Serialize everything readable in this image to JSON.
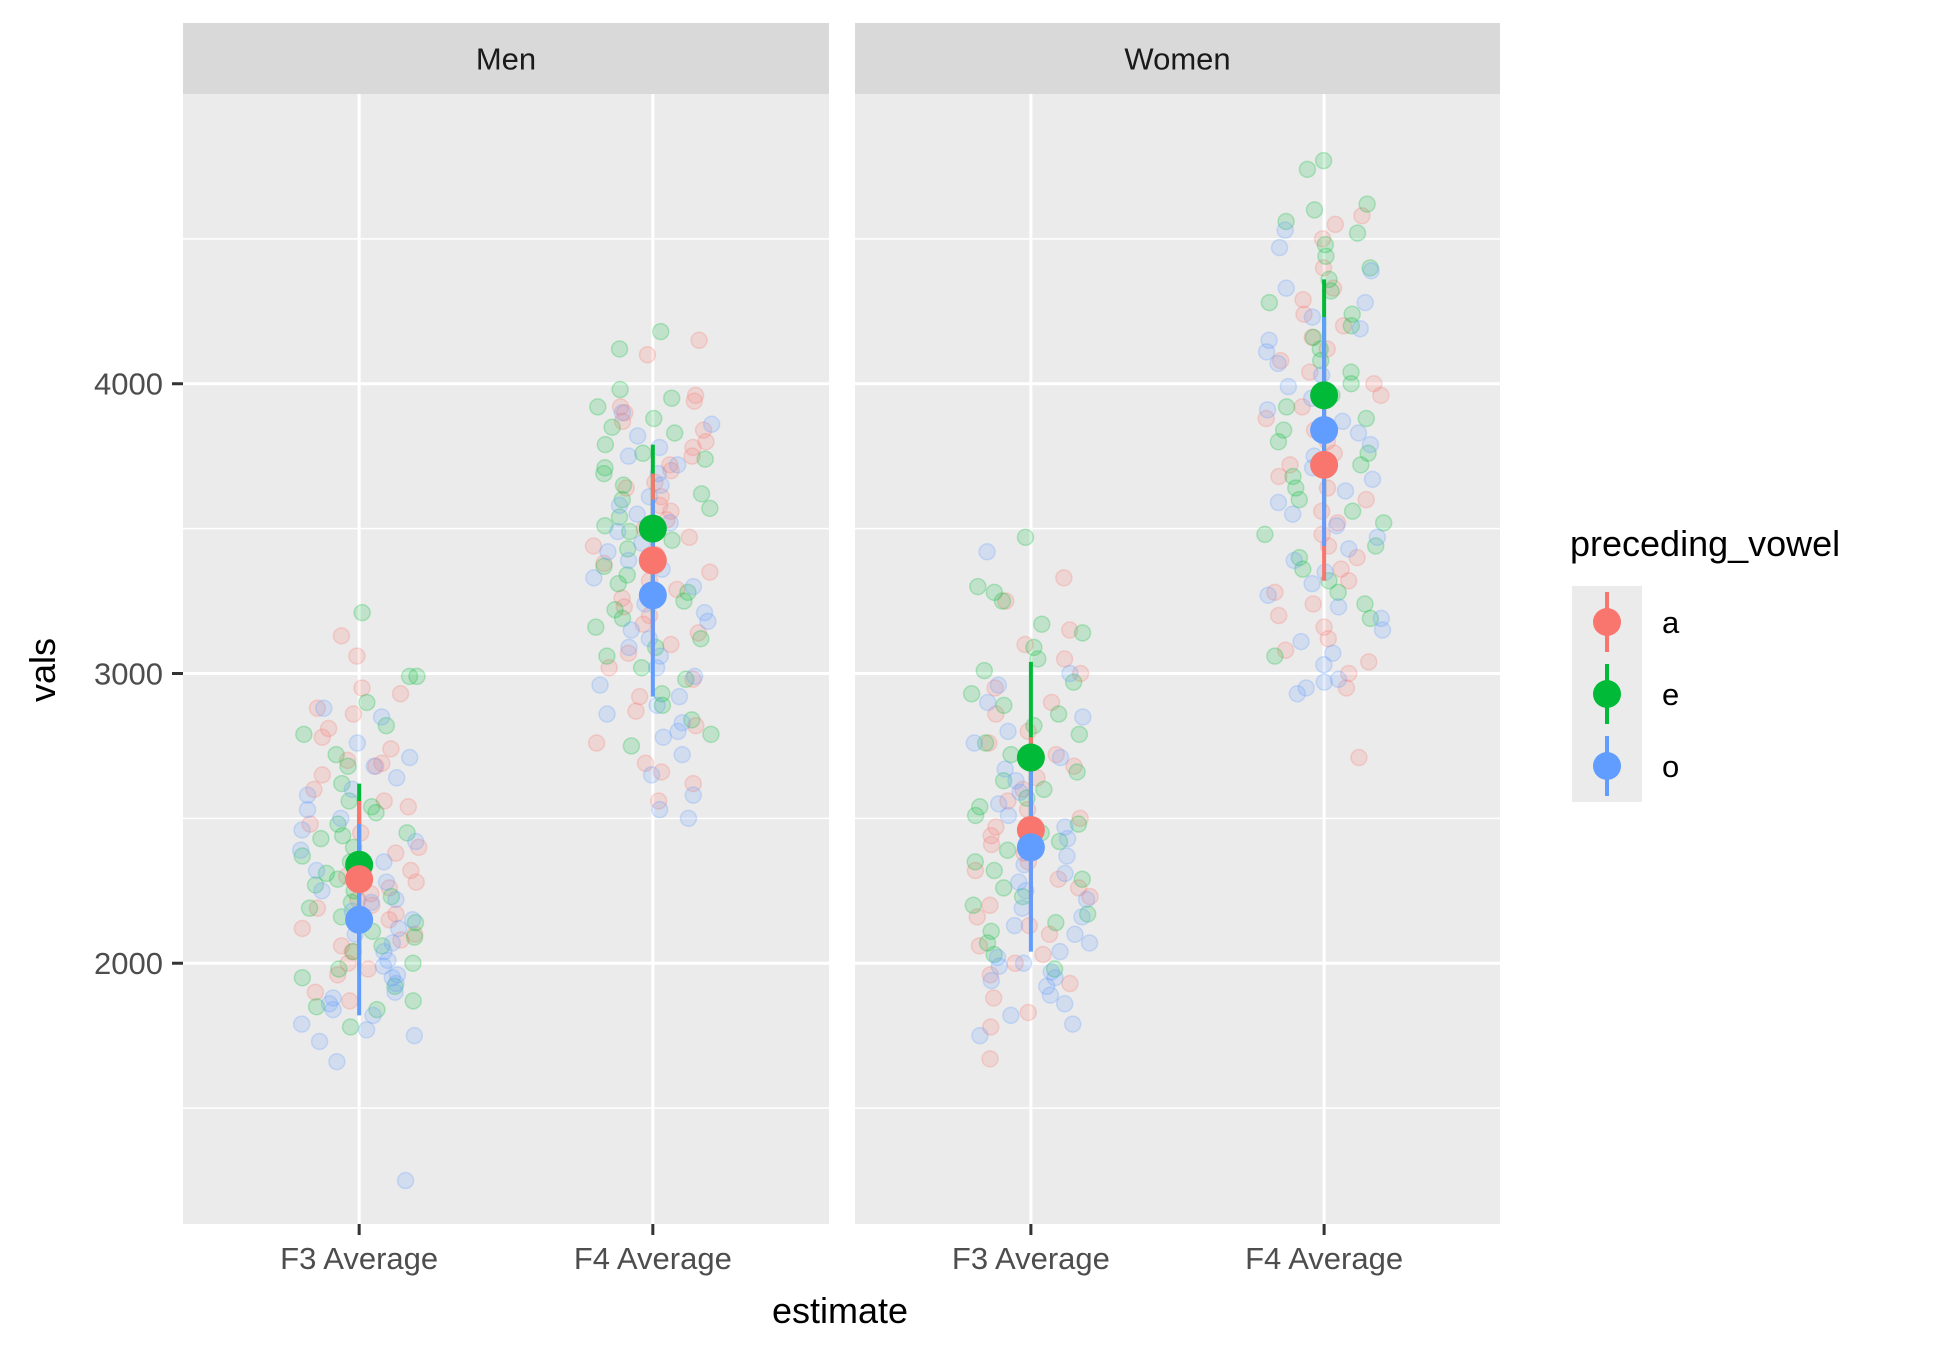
{
  "chart_data": {
    "type": "scatter",
    "xlabel": "estimate",
    "ylabel": "vals",
    "categories": [
      "F3 Average",
      "F4 Average"
    ],
    "ylim": [
      1100,
      5000
    ],
    "yticks": [
      2000,
      3000,
      4000
    ],
    "grid": true,
    "legend": {
      "title": "preceding_vowel",
      "position": "right",
      "items": [
        {
          "label": "a",
          "color": "#F8766D"
        },
        {
          "label": "e",
          "color": "#00BA38"
        },
        {
          "label": "o",
          "color": "#619CFF"
        }
      ]
    },
    "panels": [
      {
        "title": "Men",
        "summary": [
          {
            "category": "F3 Average",
            "vowel": "e",
            "mean": 2340,
            "low": 2050,
            "high": 2620
          },
          {
            "category": "F3 Average",
            "vowel": "a",
            "mean": 2290,
            "low": 1980,
            "high": 2560
          },
          {
            "category": "F3 Average",
            "vowel": "o",
            "mean": 2150,
            "low": 1820,
            "high": 2480
          },
          {
            "category": "F4 Average",
            "vowel": "e",
            "mean": 3500,
            "low": 3200,
            "high": 3790
          },
          {
            "category": "F4 Average",
            "vowel": "a",
            "mean": 3390,
            "low": 3060,
            "high": 3690
          },
          {
            "category": "F4 Average",
            "vowel": "o",
            "mean": 3270,
            "low": 2920,
            "high": 3600
          }
        ],
        "points": [
          {
            "category": "F3 Average",
            "vowel": "a",
            "values": [
              2930,
              2880,
              2780,
              2690,
              2680,
              2650,
              2600,
              2560,
              2540,
              2480,
              2450,
              2400,
              2380,
              2350,
              2320,
              2300,
              2280,
              2260,
              2240,
              2220,
              2200,
              2190,
              2170,
              2150,
              2120,
              2100,
              2080,
              2060,
              2040,
              2000,
              1980,
              1960,
              1900,
              1870,
              3130,
              3060,
              2950,
              2860,
              2810,
              2740,
              2700
            ]
          },
          {
            "category": "F3 Average",
            "vowel": "e",
            "values": [
              3210,
              2990,
              2900,
              2820,
              2790,
              2720,
              2680,
              2620,
              2560,
              2540,
              2520,
              2480,
              2450,
              2430,
              2400,
              2370,
              2340,
              2310,
              2290,
              2270,
              2250,
              2230,
              2210,
              2190,
              2160,
              2140,
              2110,
              2090,
              2060,
              2040,
              2000,
              1980,
              1950,
              1920,
              1870,
              1850,
              1840,
              1780,
              2990,
              2440,
              2350
            ]
          },
          {
            "category": "F3 Average",
            "vowel": "o",
            "values": [
              2880,
              2850,
              2760,
              2710,
              2680,
              2640,
              2580,
              2530,
              2500,
              2460,
              2420,
              2390,
              2350,
              2320,
              2280,
              2250,
              2220,
              2180,
              2150,
              2120,
              2100,
              2070,
              2040,
              2010,
              1990,
              1960,
              1950,
              1930,
              1900,
              1880,
              1860,
              1840,
              1820,
              1790,
              1770,
              1750,
              1730,
              1660,
              1250,
              2600,
              2210
            ]
          },
          {
            "category": "F4 Average",
            "vowel": "a",
            "values": [
              4150,
              4100,
              3960,
              3940,
              3920,
              3900,
              3870,
              3840,
              3800,
              3780,
              3750,
              3720,
              3700,
              3660,
              3640,
              3610,
              3580,
              3560,
              3530,
              3500,
              3470,
              3440,
              3410,
              3380,
              3350,
              3320,
              3290,
              3260,
              3230,
              3200,
              3170,
              3140,
              3100,
              3070,
              3020,
              2980,
              2920,
              2870,
              2820,
              2760,
              2690,
              2660,
              2620,
              2560
            ]
          },
          {
            "category": "F4 Average",
            "vowel": "e",
            "values": [
              4180,
              4120,
              3980,
              3950,
              3920,
              3880,
              3850,
              3830,
              3790,
              3760,
              3740,
              3710,
              3690,
              3650,
              3620,
              3600,
              3570,
              3540,
              3510,
              3490,
              3460,
              3430,
              3400,
              3370,
              3340,
              3310,
              3280,
              3250,
              3220,
              3190,
              3160,
              3120,
              3090,
              3060,
              3020,
              2980,
              2930,
              2890,
              2840,
              2790,
              2750
            ]
          },
          {
            "category": "F4 Average",
            "vowel": "o",
            "values": [
              3900,
              3860,
              3820,
              3780,
              3750,
              3720,
              3690,
              3650,
              3610,
              3580,
              3550,
              3520,
              3490,
              3450,
              3420,
              3390,
              3360,
              3330,
              3300,
              3270,
              3240,
              3210,
              3180,
              3150,
              3120,
              3090,
              3060,
              3020,
              2990,
              2960,
              2920,
              2890,
              2860,
              2830,
              2800,
              2780,
              2720,
              2650,
              2580,
              2530,
              2500
            ]
          }
        ]
      },
      {
        "title": "Women",
        "summary": [
          {
            "category": "F3 Average",
            "vowel": "e",
            "mean": 2710,
            "low": 2390,
            "high": 3040
          },
          {
            "category": "F3 Average",
            "vowel": "a",
            "mean": 2460,
            "low": 2140,
            "high": 2780
          },
          {
            "category": "F3 Average",
            "vowel": "o",
            "mean": 2400,
            "low": 2040,
            "high": 2750
          },
          {
            "category": "F4 Average",
            "vowel": "e",
            "mean": 3960,
            "low": 3570,
            "high": 4360
          },
          {
            "category": "F4 Average",
            "vowel": "a",
            "mean": 3720,
            "low": 3320,
            "high": 4090
          },
          {
            "category": "F4 Average",
            "vowel": "o",
            "mean": 3840,
            "low": 3440,
            "high": 4230
          }
        ],
        "points": [
          {
            "category": "F3 Average",
            "vowel": "a",
            "values": [
              3330,
              3250,
              3150,
              3100,
              3050,
              3000,
              2950,
              2900,
              2860,
              2800,
              2760,
              2720,
              2680,
              2640,
              2600,
              2560,
              2530,
              2500,
              2470,
              2440,
              2410,
              2380,
              2350,
              2320,
              2290,
              2260,
              2230,
              2200,
              2160,
              2130,
              2100,
              2060,
              2030,
              2000,
              1960,
              1930,
              1880,
              1830,
              1780,
              1670
            ]
          },
          {
            "category": "F3 Average",
            "vowel": "e",
            "values": [
              3470,
              3300,
              3280,
              3250,
              3170,
              3140,
              3090,
              3050,
              3010,
              2970,
              2930,
              2890,
              2860,
              2820,
              2790,
              2760,
              2720,
              2690,
              2660,
              2630,
              2600,
              2570,
              2540,
              2510,
              2480,
              2450,
              2420,
              2390,
              2350,
              2320,
              2290,
              2260,
              2230,
              2200,
              2170,
              2140,
              2110,
              2070,
              2030,
              1980
            ]
          },
          {
            "category": "F3 Average",
            "vowel": "o",
            "values": [
              3420,
              3000,
              2960,
              2900,
              2850,
              2800,
              2760,
              2710,
              2670,
              2630,
              2590,
              2550,
              2510,
              2470,
              2430,
              2400,
              2370,
              2340,
              2310,
              2280,
              2250,
              2220,
              2190,
              2160,
              2130,
              2100,
              2070,
              2040,
              2020,
              2000,
              1990,
              1970,
              1950,
              1940,
              1920,
              1890,
              1860,
              1820,
              1790,
              1750
            ]
          },
          {
            "category": "F4 Average",
            "vowel": "a",
            "values": [
              4580,
              4550,
              4500,
              4400,
              4330,
              4290,
              4240,
              4200,
              4160,
              4120,
              4080,
              4040,
              4000,
              3960,
              3920,
              3880,
              3840,
              3800,
              3760,
              3720,
              3680,
              3640,
              3600,
              3560,
              3520,
              3480,
              3440,
              3400,
              3360,
              3320,
              3280,
              3240,
              3200,
              3160,
              3120,
              3080,
              3040,
              3000,
              2950,
              2710
            ]
          },
          {
            "category": "F4 Average",
            "vowel": "e",
            "values": [
              4770,
              4740,
              4620,
              4600,
              4560,
              4520,
              4480,
              4440,
              4400,
              4360,
              4320,
              4280,
              4240,
              4200,
              4160,
              4120,
              4080,
              4040,
              4000,
              3960,
              3920,
              3880,
              3840,
              3800,
              3760,
              3720,
              3680,
              3640,
              3600,
              3560,
              3520,
              3480,
              3440,
              3400,
              3360,
              3320,
              3280,
              3240,
              3190,
              3060
            ]
          },
          {
            "category": "F4 Average",
            "vowel": "o",
            "values": [
              4530,
              4470,
              4390,
              4330,
              4280,
              4230,
              4190,
              4150,
              4110,
              4070,
              4030,
              3990,
              3950,
              3910,
              3870,
              3830,
              3790,
              3750,
              3710,
              3670,
              3630,
              3590,
              3550,
              3510,
              3470,
              3430,
              3390,
              3350,
              3310,
              3270,
              3230,
              3190,
              3150,
              3110,
              3070,
              3030,
              2980,
              2970,
              2950,
              2930
            ]
          }
        ]
      }
    ]
  }
}
